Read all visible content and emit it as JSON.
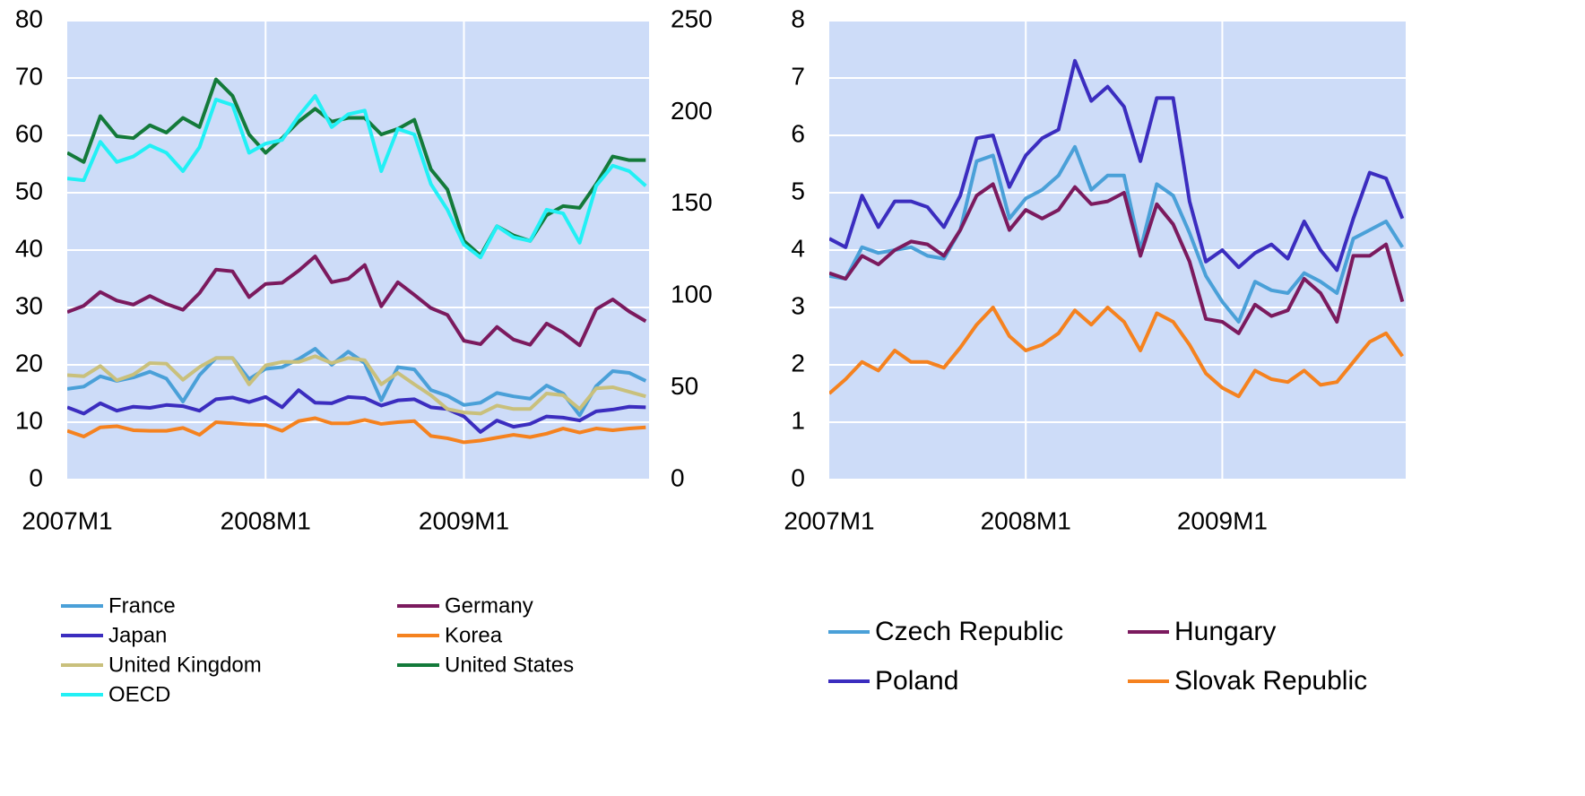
{
  "chart_data": [
    {
      "type": "line",
      "categories": [
        "2007M1",
        null,
        null,
        null,
        null,
        null,
        null,
        null,
        null,
        null,
        null,
        null,
        "2008M1",
        null,
        null,
        null,
        null,
        null,
        null,
        null,
        null,
        null,
        null,
        null,
        "2009M1",
        null,
        null,
        null,
        null,
        null,
        null,
        null,
        null,
        null,
        null,
        null
      ],
      "ylim": [
        0,
        80
      ],
      "yticks": [
        0,
        10,
        20,
        30,
        40,
        50,
        60,
        70,
        80
      ],
      "y2lim": [
        0,
        250
      ],
      "y2ticks": [
        0,
        50,
        100,
        150,
        200,
        250
      ],
      "grid": true,
      "background": "#cddcf8",
      "series": [
        {
          "name": "France",
          "color": "#4aa0d8",
          "values": [
            15.8,
            16.2,
            18,
            17.2,
            17.8,
            18.8,
            17.6,
            13.6,
            18.2,
            21.2,
            21.2,
            17.5,
            19.3,
            19.6,
            21,
            22.8,
            20,
            22.3,
            20.3,
            13.8,
            19.6,
            19.2,
            15.6,
            14.6,
            13,
            13.4,
            15.1,
            14.5,
            14.1,
            16.4,
            15,
            11.2,
            16.3,
            18.9,
            18.6,
            17.2
          ]
        },
        {
          "name": "Germany",
          "color": "#7b1a5e",
          "values": [
            29.2,
            30.3,
            32.7,
            31.2,
            30.5,
            32,
            30.6,
            29.6,
            32.5,
            36.6,
            36.3,
            31.8,
            34.1,
            34.3,
            36.4,
            38.9,
            34.4,
            35,
            37.4,
            30.2,
            34.4,
            32.2,
            29.9,
            28.7,
            24.2,
            23.6,
            26.6,
            24.4,
            23.5,
            27.2,
            25.6,
            23.4,
            29.7,
            31.4,
            29.3,
            27.6
          ]
        },
        {
          "name": "Japan",
          "color": "#3b2dbf",
          "values": [
            12.6,
            11.5,
            13.3,
            12,
            12.7,
            12.5,
            13,
            12.8,
            12,
            14,
            14.3,
            13.5,
            14.4,
            12.6,
            15.6,
            13.4,
            13.3,
            14.4,
            14.2,
            12.9,
            13.8,
            14,
            12.6,
            12.3,
            11,
            8.3,
            10.3,
            9.2,
            9.7,
            11,
            10.8,
            10.3,
            11.9,
            12.2,
            12.7,
            12.6
          ]
        },
        {
          "name": "Korea",
          "color": "#f5821f",
          "values": [
            8.5,
            7.5,
            9.1,
            9.3,
            8.6,
            8.5,
            8.5,
            9,
            7.8,
            10,
            9.8,
            9.6,
            9.5,
            8.5,
            10.2,
            10.7,
            9.8,
            9.8,
            10.4,
            9.7,
            10,
            10.2,
            7.6,
            7.2,
            6.5,
            6.8,
            7.3,
            7.8,
            7.4,
            8,
            8.9,
            8.2,
            8.9,
            8.6,
            8.9,
            9.1
          ]
        },
        {
          "name": "United Kingdom",
          "color": "#c9c07c",
          "values": [
            18.2,
            18,
            19.8,
            17.3,
            18.3,
            20.3,
            20.2,
            17.4,
            19.6,
            21.2,
            21.2,
            16.6,
            19.9,
            20.5,
            20.5,
            21.5,
            20.3,
            21.2,
            20.8,
            16.6,
            18.6,
            16.6,
            14.7,
            12.3,
            11.7,
            11.5,
            12.9,
            12.3,
            12.3,
            15,
            14.7,
            12.3,
            15.9,
            16.1,
            15.3,
            14.5
          ]
        },
        {
          "name": "United States",
          "color": "#137a3a",
          "axis": "y2",
          "values": [
            178,
            173,
            198,
            187,
            186,
            193,
            189,
            197,
            192,
            218,
            209,
            188,
            178,
            186,
            195,
            202,
            195,
            197,
            197,
            188,
            191,
            196,
            169,
            158,
            130,
            122,
            138,
            133,
            130,
            144,
            149,
            148,
            161,
            176,
            174,
            174
          ]
        },
        {
          "name": "OECD",
          "color": "#22f0f5",
          "axis": "y2",
          "values": [
            164,
            163,
            184,
            173,
            176,
            182,
            178,
            168,
            181,
            207,
            204,
            178,
            183,
            185,
            198,
            209,
            192,
            199,
            201,
            168,
            191,
            188,
            161,
            147,
            128,
            121,
            138,
            132,
            130,
            147,
            145,
            129,
            160,
            171,
            168,
            160
          ]
        }
      ]
    },
    {
      "type": "line",
      "categories": [
        "2007M1",
        null,
        null,
        null,
        null,
        null,
        null,
        null,
        null,
        null,
        null,
        null,
        "2008M1",
        null,
        null,
        null,
        null,
        null,
        null,
        null,
        null,
        null,
        null,
        null,
        "2009M1",
        null,
        null,
        null,
        null,
        null,
        null,
        null,
        null,
        null,
        null,
        null
      ],
      "ylim": [
        0,
        8
      ],
      "yticks": [
        0,
        1,
        2,
        3,
        4,
        5,
        6,
        7,
        8
      ],
      "grid": true,
      "background": "#cddcf8",
      "series": [
        {
          "name": "Czech Republic",
          "color": "#4aa0d8",
          "values": [
            3.55,
            3.5,
            4.05,
            3.95,
            4,
            4.05,
            3.9,
            3.85,
            4.35,
            5.55,
            5.65,
            4.55,
            4.9,
            5.05,
            5.3,
            5.8,
            5.05,
            5.3,
            5.3,
            4,
            5.15,
            4.95,
            4.3,
            3.55,
            3.1,
            2.75,
            3.45,
            3.3,
            3.25,
            3.6,
            3.45,
            3.25,
            4.2,
            4.35,
            4.5,
            4.05
          ]
        },
        {
          "name": "Hungary",
          "color": "#7b1a5e",
          "values": [
            3.6,
            3.5,
            3.9,
            3.75,
            4,
            4.15,
            4.1,
            3.9,
            4.35,
            4.95,
            5.15,
            4.35,
            4.7,
            4.55,
            4.7,
            5.1,
            4.8,
            4.85,
            5,
            3.9,
            4.8,
            4.45,
            3.8,
            2.8,
            2.75,
            2.55,
            3.05,
            2.85,
            2.95,
            3.5,
            3.25,
            2.75,
            3.9,
            3.9,
            4.1,
            3.1
          ]
        },
        {
          "name": "Poland",
          "color": "#3b2dbf",
          "values": [
            4.2,
            4.05,
            4.95,
            4.4,
            4.85,
            4.85,
            4.75,
            4.4,
            4.95,
            5.95,
            6,
            5.1,
            5.65,
            5.95,
            6.1,
            7.3,
            6.6,
            6.85,
            6.5,
            5.55,
            6.65,
            6.65,
            4.85,
            3.8,
            4,
            3.7,
            3.95,
            4.1,
            3.85,
            4.5,
            4,
            3.65,
            4.55,
            5.35,
            5.25,
            4.55
          ]
        },
        {
          "name": "Slovak Republic",
          "color": "#f5821f",
          "values": [
            1.5,
            1.75,
            2.05,
            1.9,
            2.25,
            2.05,
            2.05,
            1.95,
            2.3,
            2.7,
            3,
            2.5,
            2.25,
            2.35,
            2.55,
            2.95,
            2.7,
            3,
            2.75,
            2.25,
            2.9,
            2.75,
            2.35,
            1.85,
            1.6,
            1.45,
            1.9,
            1.75,
            1.7,
            1.9,
            1.65,
            1.7,
            2.05,
            2.4,
            2.55,
            2.15
          ]
        }
      ]
    }
  ]
}
